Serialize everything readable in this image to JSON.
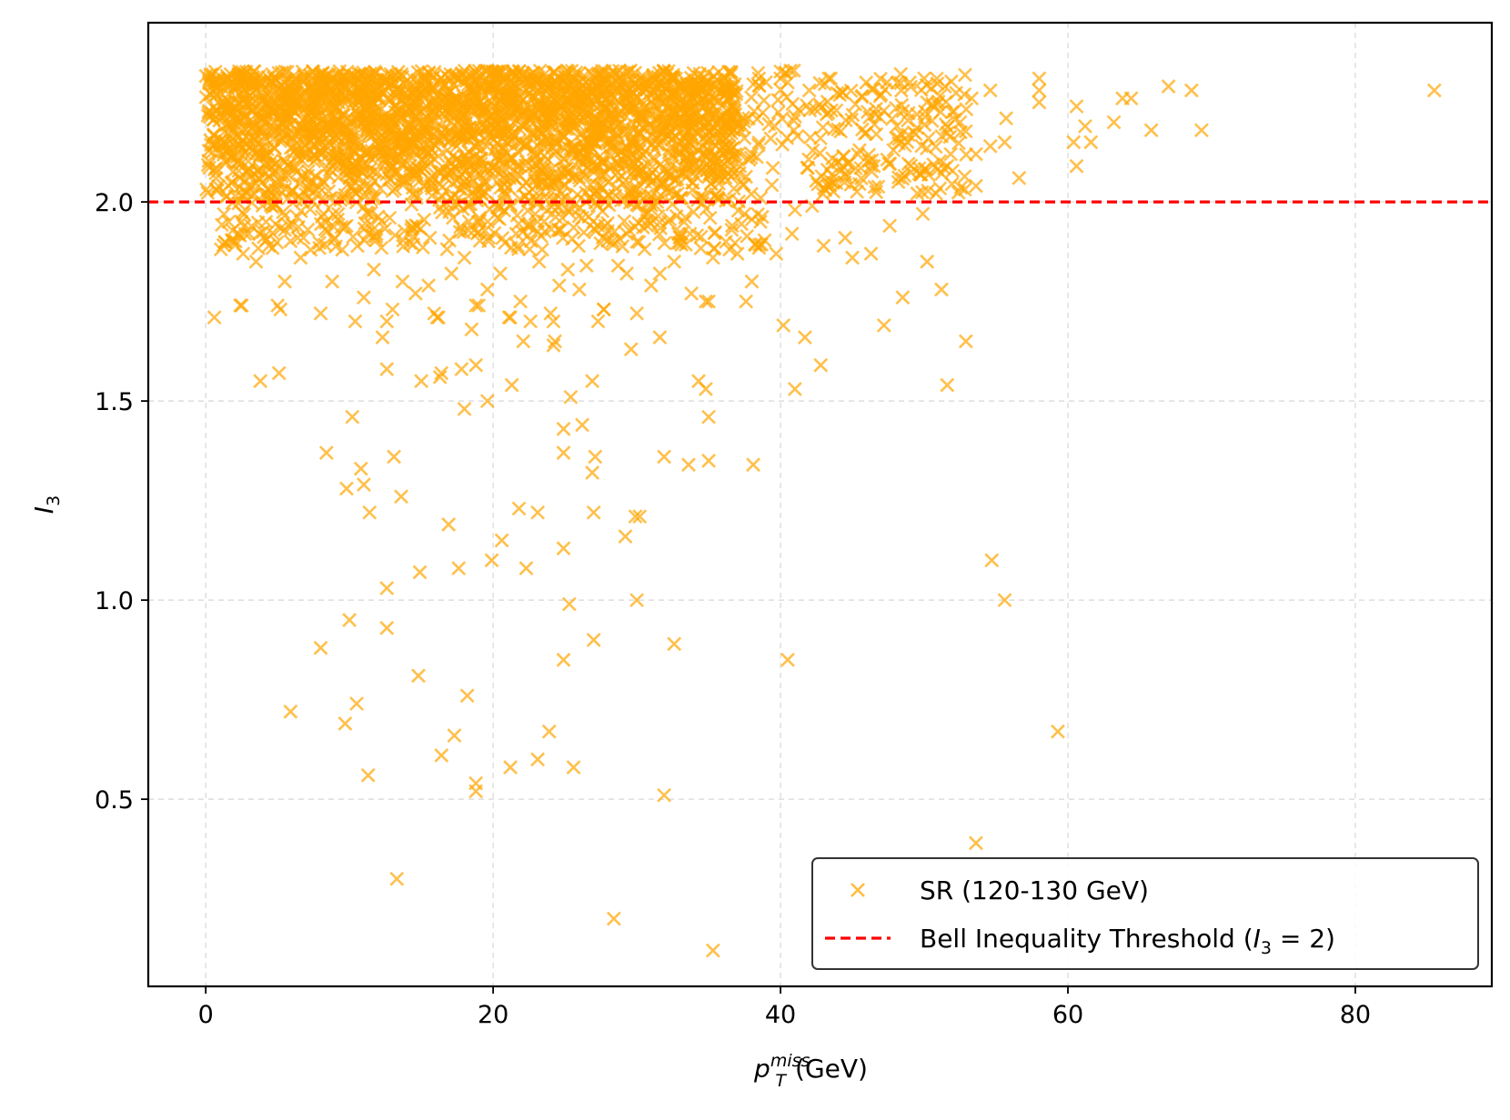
{
  "chart_data": {
    "type": "scatter",
    "title": "",
    "xlabel": {
      "base": "p",
      "sub": "T",
      "sup": "miss",
      "unit": "(GeV)"
    },
    "ylabel": {
      "base": "I",
      "sub": "3"
    },
    "xlim": [
      -4,
      89.5
    ],
    "ylim": [
      0.03,
      2.45
    ],
    "xticks": [
      0,
      20,
      40,
      60,
      80
    ],
    "xtick_labels": [
      "0",
      "20",
      "40",
      "60",
      "80"
    ],
    "yticks": [
      0.5,
      1.0,
      1.5,
      2.0
    ],
    "ytick_labels": [
      "0.5",
      "1.0",
      "1.5",
      "2.0"
    ],
    "grid": true,
    "legend_position": "bottom-right",
    "series": [
      {
        "name": "SR (120-130 GeV)",
        "marker": "x",
        "color": "#FFA500",
        "dense_region": {
          "x_range": [
            0,
            37
          ],
          "y_range": [
            2.0,
            2.33
          ],
          "approx_points": 2600
        },
        "points": [
          [
            85.5,
            2.28
          ],
          [
            67.0,
            2.29
          ],
          [
            68.6,
            2.28
          ],
          [
            69.3,
            2.18
          ],
          [
            65.8,
            2.18
          ],
          [
            64.4,
            2.26
          ],
          [
            63.8,
            2.26
          ],
          [
            63.2,
            2.2
          ],
          [
            61.6,
            2.15
          ],
          [
            61.2,
            2.19
          ],
          [
            60.6,
            2.24
          ],
          [
            60.4,
            2.15
          ],
          [
            60.6,
            2.09
          ],
          [
            58.0,
            2.25
          ],
          [
            58.0,
            2.28
          ],
          [
            58.0,
            2.31
          ],
          [
            56.6,
            2.06
          ],
          [
            55.7,
            2.21
          ],
          [
            55.6,
            2.15
          ],
          [
            54.6,
            2.28
          ],
          [
            53.6,
            2.04
          ],
          [
            53.3,
            2.26
          ],
          [
            52.8,
            2.27
          ],
          [
            53.6,
            2.12
          ],
          [
            54.6,
            2.14
          ],
          [
            52.5,
            2.2
          ],
          [
            50.6,
            2.24
          ],
          [
            49.5,
            2.22
          ],
          [
            50.0,
            2.31
          ],
          [
            48.4,
            2.17
          ],
          [
            47.0,
            2.27
          ],
          [
            46.6,
            2.22
          ],
          [
            45.5,
            2.13
          ],
          [
            44.5,
            2.07
          ],
          [
            43.5,
            2.31
          ],
          [
            43.2,
            2.22
          ],
          [
            42.0,
            2.28
          ],
          [
            40.5,
            2.3
          ],
          [
            40.0,
            2.31
          ],
          [
            39.6,
            2.19
          ],
          [
            38.5,
            2.31
          ],
          [
            38.0,
            2.12
          ],
          [
            49.0,
            2.3
          ],
          [
            50.3,
            2.16
          ],
          [
            51.6,
            2.09
          ],
          [
            48.2,
            2.05
          ],
          [
            47.6,
            1.94
          ],
          [
            49.9,
            1.97
          ],
          [
            46.3,
            1.87
          ],
          [
            45.0,
            1.86
          ],
          [
            44.5,
            1.91
          ],
          [
            43.0,
            1.89
          ],
          [
            42.2,
            1.99
          ],
          [
            41.0,
            1.98
          ],
          [
            40.8,
            1.92
          ],
          [
            39.7,
            1.87
          ],
          [
            38.6,
            1.95
          ],
          [
            38.0,
            1.8
          ],
          [
            37.6,
            1.75
          ],
          [
            37.0,
            1.87
          ],
          [
            36.2,
            1.9
          ],
          [
            35.3,
            1.86
          ],
          [
            34.8,
            1.75
          ],
          [
            33.8,
            1.77
          ],
          [
            33.1,
            1.92
          ],
          [
            32.6,
            1.85
          ],
          [
            31.6,
            1.82
          ],
          [
            31.0,
            1.79
          ],
          [
            30.0,
            1.9
          ],
          [
            29.3,
            1.82
          ],
          [
            28.7,
            1.84
          ],
          [
            27.7,
            1.73
          ],
          [
            27.3,
            1.7
          ],
          [
            26.5,
            1.84
          ],
          [
            26.0,
            1.78
          ],
          [
            25.2,
            1.83
          ],
          [
            24.6,
            1.79
          ],
          [
            24.0,
            1.72
          ],
          [
            23.2,
            1.85
          ],
          [
            22.6,
            1.7
          ],
          [
            21.9,
            1.75
          ],
          [
            21.1,
            1.71
          ],
          [
            20.5,
            1.82
          ],
          [
            19.6,
            1.78
          ],
          [
            19.0,
            1.74
          ],
          [
            18.5,
            1.68
          ],
          [
            18.0,
            1.86
          ],
          [
            17.1,
            1.82
          ],
          [
            16.2,
            1.71
          ],
          [
            15.5,
            1.79
          ],
          [
            14.6,
            1.77
          ],
          [
            13.7,
            1.8
          ],
          [
            13.0,
            1.73
          ],
          [
            12.6,
            1.7
          ],
          [
            11.7,
            1.83
          ],
          [
            11.0,
            1.76
          ],
          [
            10.4,
            1.7
          ],
          [
            9.5,
            1.88
          ],
          [
            8.8,
            1.8
          ],
          [
            8.0,
            1.72
          ],
          [
            7.3,
            1.88
          ],
          [
            6.6,
            1.86
          ],
          [
            5.5,
            1.8
          ],
          [
            5.0,
            1.74
          ],
          [
            4.4,
            1.89
          ],
          [
            3.5,
            1.85
          ],
          [
            2.6,
            1.87
          ],
          [
            2.4,
            1.74
          ],
          [
            0.6,
            1.71
          ],
          [
            1.6,
            1.95
          ],
          [
            3.0,
            1.92
          ],
          [
            4.2,
            1.95
          ],
          [
            5.5,
            1.93
          ],
          [
            6.8,
            1.91
          ],
          [
            8.2,
            1.97
          ],
          [
            9.8,
            1.94
          ],
          [
            11.3,
            1.92
          ],
          [
            12.8,
            1.96
          ],
          [
            14.3,
            1.93
          ],
          [
            15.6,
            1.91
          ],
          [
            17.2,
            1.96
          ],
          [
            18.7,
            1.93
          ],
          [
            20.3,
            1.96
          ],
          [
            21.6,
            1.92
          ],
          [
            23.1,
            1.95
          ],
          [
            24.7,
            1.93
          ],
          [
            26.2,
            1.96
          ],
          [
            27.8,
            1.94
          ],
          [
            29.3,
            1.92
          ],
          [
            30.7,
            1.97
          ],
          [
            32.2,
            1.95
          ],
          [
            33.7,
            1.92
          ],
          [
            35.1,
            1.96
          ],
          [
            36.6,
            1.93
          ],
          [
            37.5,
            1.97
          ],
          [
            52.9,
            1.65
          ],
          [
            51.6,
            1.54
          ],
          [
            51.2,
            1.78
          ],
          [
            50.2,
            1.85
          ],
          [
            48.5,
            1.76
          ],
          [
            47.2,
            1.69
          ],
          [
            42.8,
            1.59
          ],
          [
            41.7,
            1.66
          ],
          [
            41.0,
            1.53
          ],
          [
            40.2,
            1.69
          ],
          [
            38.1,
            1.34
          ],
          [
            35.0,
            1.75
          ],
          [
            35.0,
            1.46
          ],
          [
            35.0,
            1.35
          ],
          [
            34.8,
            1.53
          ],
          [
            34.3,
            1.55
          ],
          [
            33.6,
            1.34
          ],
          [
            31.9,
            1.36
          ],
          [
            31.6,
            1.66
          ],
          [
            30.2,
            1.21
          ],
          [
            29.9,
            1.21
          ],
          [
            30.0,
            1.72
          ],
          [
            29.6,
            1.63
          ],
          [
            29.2,
            1.16
          ],
          [
            27.7,
            1.73
          ],
          [
            26.9,
            1.55
          ],
          [
            27.1,
            1.36
          ],
          [
            26.9,
            1.32
          ],
          [
            27.0,
            1.22
          ],
          [
            26.2,
            1.44
          ],
          [
            25.4,
            1.51
          ],
          [
            24.9,
            1.43
          ],
          [
            24.9,
            1.37
          ],
          [
            24.2,
            1.64
          ],
          [
            24.2,
            1.7
          ],
          [
            24.3,
            1.65
          ],
          [
            23.1,
            1.22
          ],
          [
            22.1,
            1.65
          ],
          [
            21.8,
            1.23
          ],
          [
            21.3,
            1.54
          ],
          [
            21.2,
            1.71
          ],
          [
            20.6,
            1.15
          ],
          [
            19.6,
            1.5
          ],
          [
            19.9,
            1.1
          ],
          [
            18.8,
            1.59
          ],
          [
            18.8,
            1.74
          ],
          [
            18.0,
            1.48
          ],
          [
            17.8,
            1.58
          ],
          [
            16.4,
            1.57
          ],
          [
            16.3,
            1.56
          ],
          [
            15.9,
            1.72
          ],
          [
            15.0,
            1.55
          ],
          [
            16.1,
            1.71
          ],
          [
            13.6,
            1.26
          ],
          [
            13.1,
            1.36
          ],
          [
            12.6,
            1.58
          ],
          [
            12.3,
            1.66
          ],
          [
            11.4,
            1.22
          ],
          [
            11.0,
            1.29
          ],
          [
            10.8,
            1.33
          ],
          [
            10.2,
            1.46
          ],
          [
            9.8,
            1.28
          ],
          [
            8.4,
            1.37
          ],
          [
            5.1,
            1.57
          ],
          [
            3.8,
            1.55
          ],
          [
            2.5,
            1.74
          ],
          [
            5.2,
            1.73
          ],
          [
            17.6,
            1.08
          ],
          [
            22.3,
            1.08
          ],
          [
            24.9,
            1.13
          ],
          [
            25.3,
            0.99
          ],
          [
            27.0,
            0.9
          ],
          [
            30.0,
            1.0
          ],
          [
            32.6,
            0.89
          ],
          [
            40.5,
            0.85
          ],
          [
            54.7,
            1.1
          ],
          [
            55.6,
            1.0
          ],
          [
            59.3,
            0.67
          ],
          [
            53.6,
            0.39
          ],
          [
            31.9,
            0.51
          ],
          [
            35.3,
            0.12
          ],
          [
            28.4,
            0.2
          ],
          [
            25.6,
            0.58
          ],
          [
            23.1,
            0.6
          ],
          [
            23.9,
            0.67
          ],
          [
            21.2,
            0.58
          ],
          [
            18.8,
            0.54
          ],
          [
            18.8,
            0.52
          ],
          [
            18.2,
            0.76
          ],
          [
            17.3,
            0.66
          ],
          [
            16.4,
            0.61
          ],
          [
            14.8,
            0.81
          ],
          [
            14.9,
            1.07
          ],
          [
            16.9,
            1.19
          ],
          [
            12.6,
            1.03
          ],
          [
            12.6,
            0.93
          ],
          [
            11.3,
            0.56
          ],
          [
            10.5,
            0.74
          ],
          [
            10.0,
            0.95
          ],
          [
            9.7,
            0.69
          ],
          [
            8.0,
            0.88
          ],
          [
            5.9,
            0.72
          ],
          [
            13.3,
            0.3
          ],
          [
            24.9,
            0.85
          ]
        ]
      },
      {
        "name": "Bell Inequality Threshold",
        "label_math": {
          "base": "I",
          "sub": "3",
          "tail": " = 2)"
        },
        "label_prefix": "Bell Inequality Threshold (",
        "type": "hline",
        "y": 2.0,
        "style": "dashed",
        "color": "#FF0000"
      }
    ]
  }
}
